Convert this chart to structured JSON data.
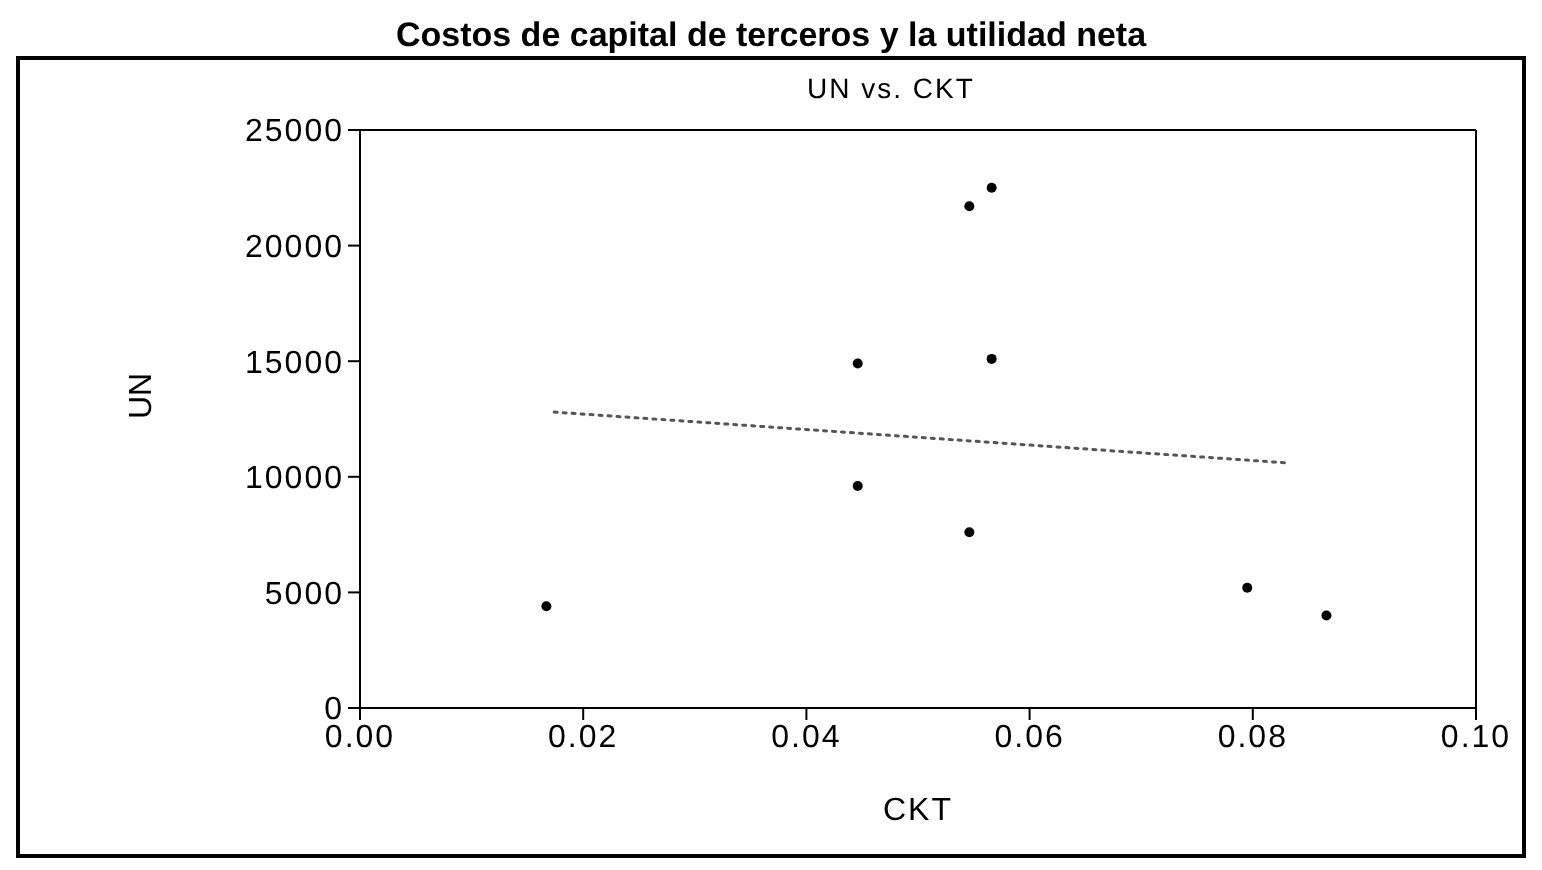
{
  "chart_data": {
    "type": "scatter",
    "title": "Costos de capital de terceros y la utilidad neta",
    "subtitle": "UN vs. CKT",
    "xlabel": "CKT",
    "ylabel": "UN",
    "xlim": [
      0,
      0.1
    ],
    "xticks": [
      {
        "value": 0,
        "label": "0.00"
      },
      {
        "value": 0.02,
        "label": "0.02"
      },
      {
        "value": 0.04,
        "label": "0.04"
      },
      {
        "value": 0.06,
        "label": "0.06"
      },
      {
        "value": 0.08,
        "label": "0.08"
      },
      {
        "value": 0.1,
        "label": "0.10"
      }
    ],
    "ylim": [
      0,
      25000
    ],
    "yticks": [
      0,
      5000,
      10000,
      15000,
      20000,
      25000
    ],
    "grid": false,
    "legend": false,
    "marker": "circle",
    "series": [
      {
        "color": "#000000",
        "x": [
          0.0167,
          0.0446,
          0.0446,
          0.0546,
          0.0546,
          0.0566,
          0.0566,
          0.0795,
          0.0866
        ],
        "values": [
          4400,
          14900,
          9600,
          21700,
          7600,
          22500,
          15100,
          5200,
          4000
        ]
      },
      {
        "type": "line",
        "color": "#555555",
        "line_style": "dotted",
        "marker": "none",
        "x": [
          0.0174,
          0.0831
        ],
        "values": [
          12800,
          10600
        ]
      }
    ]
  }
}
